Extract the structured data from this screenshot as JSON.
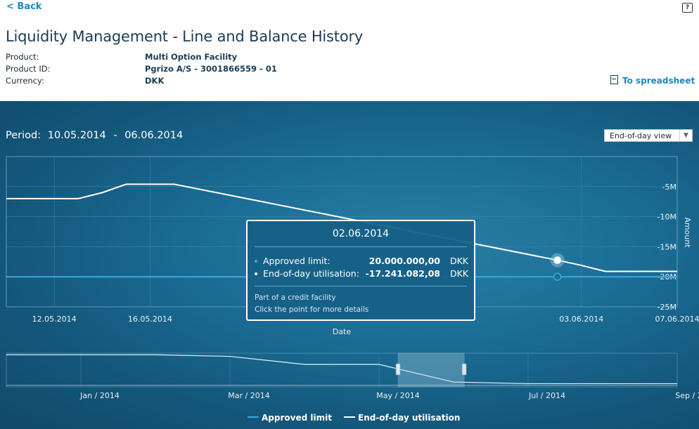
{
  "nav": {
    "back_label": "< Back",
    "help_label": "?"
  },
  "page_title": "Liquidity Management - Line and Balance History",
  "details": [
    {
      "key": "Product:",
      "value": "Multi Option Facility"
    },
    {
      "key": "Product ID:",
      "value": "Pgrizo A/S - 3001866559 - 01"
    },
    {
      "key": "Currency:",
      "value": "DKK"
    }
  ],
  "spreadsheet_label": "To spreadsheet",
  "period": {
    "label": "Period:",
    "from": "10.05.2014",
    "to": "06.06.2014"
  },
  "view_select": {
    "value": "End-of-day view"
  },
  "tooltip": {
    "date": "02.06.2014",
    "approved_label": "Approved limit:",
    "approved_value": "20.000.000,00",
    "approved_currency": "DKK",
    "utilisation_label": "End-of-day utilisation:",
    "utilisation_value": "-17.241.082,08",
    "utilisation_currency": "DKK",
    "note1": "Part of a credit facility",
    "note2": "Click the point for more details"
  },
  "colors": {
    "approved": "#3aa8e0",
    "utilisation": "#ffffff",
    "panel": "#1b6e96"
  },
  "chart_data": [
    {
      "type": "line",
      "xlabel": "Date",
      "ylabel": "Amount",
      "x_ticks": [
        "12.05.2014",
        "16.05.2014",
        "03.06.2014",
        "07.06.2014"
      ],
      "y_ticks": [
        "-5M",
        "-10M",
        "-15M",
        "-20M",
        "-25M"
      ],
      "y_tick_values": [
        -5,
        -10,
        -15,
        -20,
        -25
      ],
      "ylim": [
        -25,
        0
      ],
      "xlim": [
        "2014-05-10",
        "2014-06-07"
      ],
      "grid": true,
      "series": [
        {
          "name": "Approved limit",
          "x": [
            "2014-05-10",
            "2014-06-07"
          ],
          "y": [
            -20,
            -20
          ]
        },
        {
          "name": "End-of-day utilisation",
          "x": [
            "2014-05-10",
            "2014-05-11",
            "2014-05-12",
            "2014-05-13",
            "2014-05-14",
            "2014-05-15",
            "2014-05-16",
            "2014-05-17",
            "2014-06-02",
            "2014-06-03",
            "2014-06-04",
            "2014-06-05",
            "2014-06-06",
            "2014-06-07"
          ],
          "y": [
            -7.0,
            -7.0,
            -7.0,
            -7.0,
            -6.0,
            -4.6,
            -4.6,
            -4.6,
            -17.24,
            -18.1,
            -19.1,
            -19.1,
            -19.1,
            -19.1
          ]
        }
      ]
    },
    {
      "type": "line",
      "x_ticks": [
        "Jan / 2014",
        "Mar / 2014",
        "May / 2014",
        "Jul / 2014",
        "Sep / 2014"
      ],
      "selected_range": [
        "2014-05-10",
        "2014-06-06"
      ],
      "series": [
        {
          "name": "Approved limit",
          "x": [
            "2013-12",
            "2014-09"
          ],
          "y": [
            -20,
            -20
          ]
        },
        {
          "name": "End-of-day utilisation",
          "x": [
            "2013-12",
            "2014-01",
            "2014-02",
            "2014-03",
            "2014-04",
            "2014-05",
            "2014-06",
            "2014-07",
            "2014-08",
            "2014-09"
          ],
          "y": [
            -1,
            -1,
            -1,
            -2,
            -7,
            -7,
            -18,
            -19,
            -19,
            -19
          ]
        }
      ]
    }
  ],
  "legend": [
    {
      "label": "Approved limit"
    },
    {
      "label": "End-of-day utilisation"
    }
  ]
}
